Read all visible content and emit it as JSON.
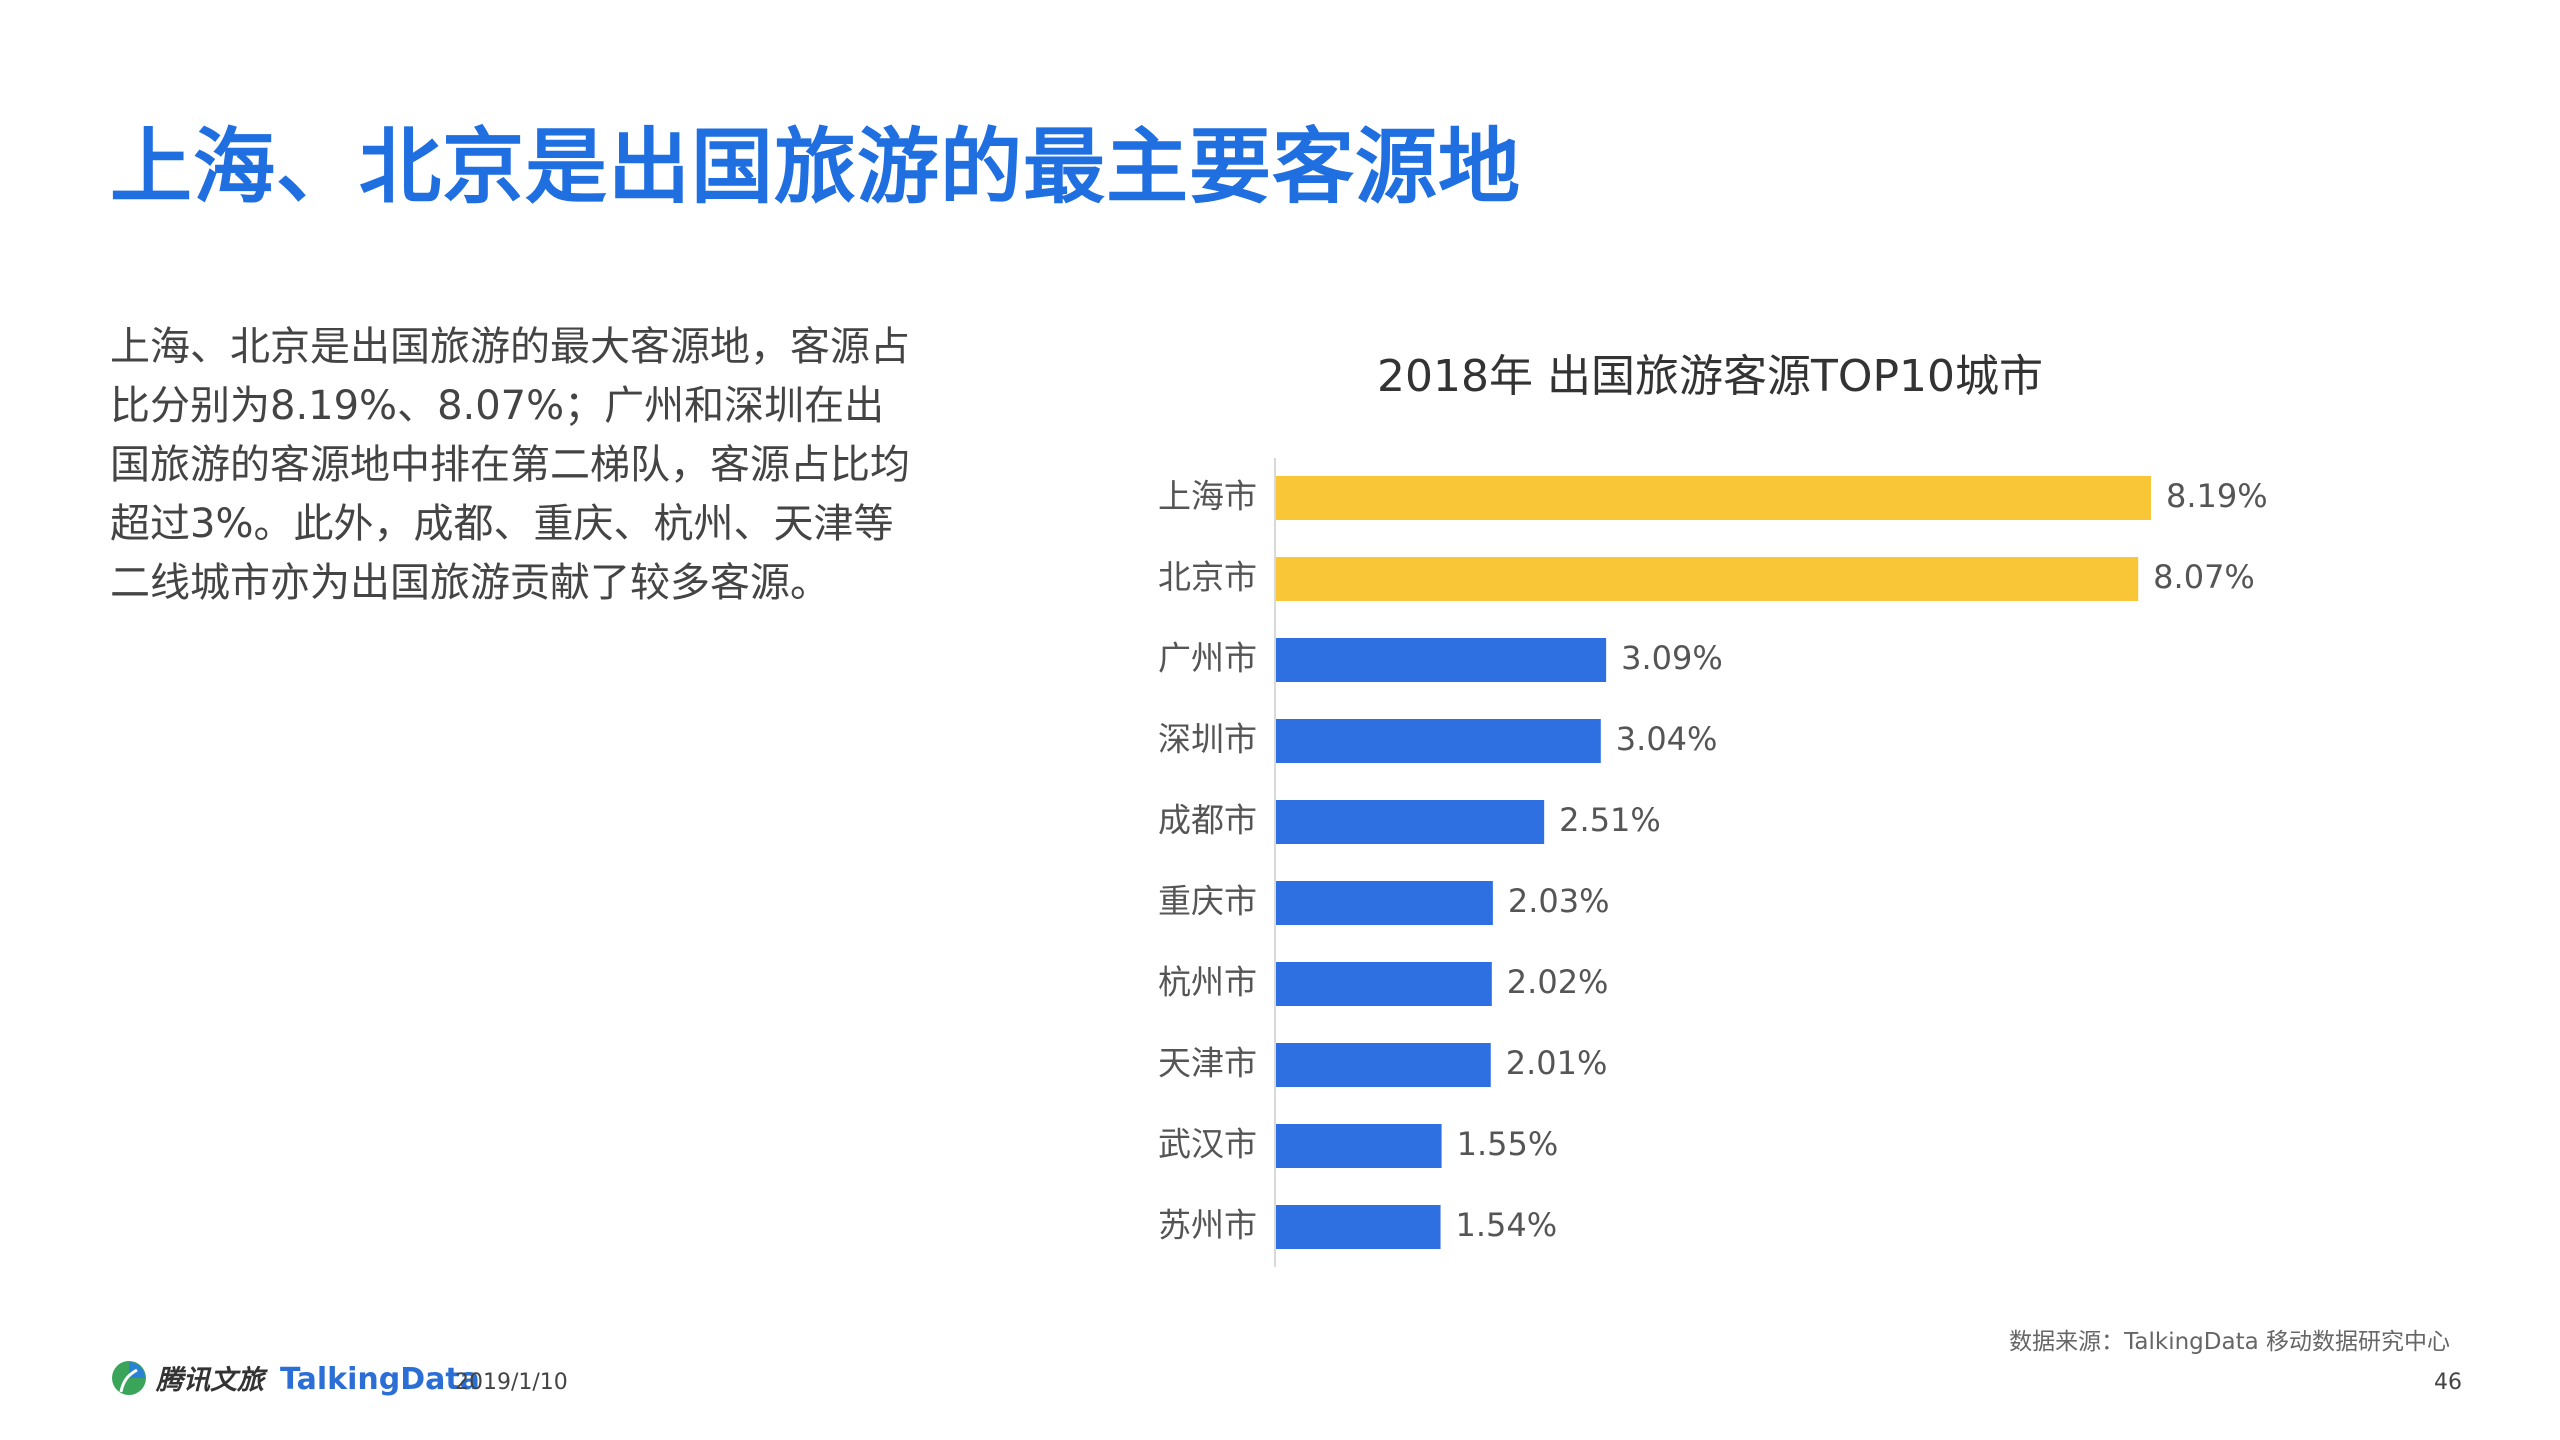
{
  "slide": {
    "title": "上海、北京是出国旅游的最主要客源地",
    "body": "上海、北京是出国旅游的最大客源地，客源占比分别为8.19%、8.07%；广州和深圳在出国旅游的客源地中排在第二梯队，客源占比均超过3%。此外，成都、重庆、杭州、天津等二线城市亦为出国旅游贡献了较多客源。"
  },
  "chart_data": {
    "type": "bar",
    "orientation": "horizontal",
    "title": "2018年 出国旅游客源TOP10城市",
    "categories": [
      "上海市",
      "北京市",
      "广州市",
      "深圳市",
      "成都市",
      "重庆市",
      "杭州市",
      "天津市",
      "武汉市",
      "苏州市"
    ],
    "values": [
      8.19,
      8.07,
      3.09,
      3.04,
      2.51,
      2.03,
      2.02,
      2.01,
      1.55,
      1.54
    ],
    "value_labels": [
      "8.19%",
      "8.07%",
      "3.09%",
      "3.04%",
      "2.51%",
      "2.03%",
      "2.02%",
      "2.01%",
      "1.55%",
      "1.54%"
    ],
    "bar_colors": [
      "#F8C637",
      "#F8C637",
      "#2E6FE2",
      "#2E6FE2",
      "#2E6FE2",
      "#2E6FE2",
      "#2E6FE2",
      "#2E6FE2",
      "#2E6FE2",
      "#2E6FE2"
    ],
    "axis_color": "#D9D9D9",
    "xlim": [
      0,
      8.19
    ],
    "grid": false,
    "legend": "none"
  },
  "footer": {
    "brand_tencent": "腾讯文旅",
    "brand_talkingdata": "TalkingData",
    "date": "2019/1/10",
    "source": "数据来源：TalkingData 移动数据研究中心",
    "page_number": "46"
  }
}
